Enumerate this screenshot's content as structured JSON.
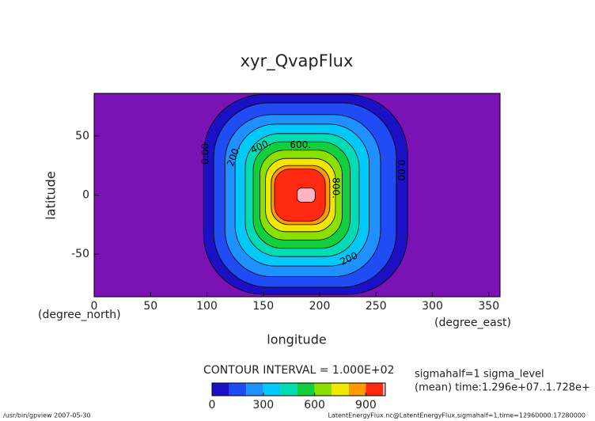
{
  "chart_data": {
    "type": "contour",
    "title": "xyr_QvapFlux",
    "x_label": "longitude",
    "y_label": "latitude",
    "x_unit": "(degree_east)",
    "y_unit": "(degree_north)",
    "xlim": [
      0,
      360
    ],
    "ylim": [
      -86,
      86
    ],
    "xticks": [
      0,
      50,
      100,
      150,
      200,
      250,
      300,
      350
    ],
    "yticks": [
      -50,
      0,
      50
    ],
    "background_color": "#7a12b4",
    "contours": [
      {
        "level": 0,
        "color": "#1c10c4",
        "lon": [
          97,
          278
        ],
        "lat": [
          -84,
          85
        ]
      },
      {
        "level": 100,
        "color": "#1f4cf5",
        "lon": [
          106,
          268
        ],
        "lat": [
          -78,
          78
        ]
      },
      {
        "level": 200,
        "color": "#1e90ff",
        "lon": [
          116,
          254
        ],
        "lat": [
          -69,
          68
        ]
      },
      {
        "level": 300,
        "color": "#00c8f8",
        "lon": [
          125,
          244
        ],
        "lat": [
          -60,
          60
        ]
      },
      {
        "level": 400,
        "color": "#00dcb4",
        "lon": [
          134,
          235
        ],
        "lat": [
          -52,
          52
        ]
      },
      {
        "level": 500,
        "color": "#10d040",
        "lon": [
          141,
          227
        ],
        "lat": [
          -45,
          45
        ]
      },
      {
        "level": 600,
        "color": "#8ce000",
        "lon": [
          147,
          220
        ],
        "lat": [
          -38,
          38
        ]
      },
      {
        "level": 700,
        "color": "#f0e800",
        "lon": [
          152,
          214
        ],
        "lat": [
          -31,
          31
        ]
      },
      {
        "level": 800,
        "color": "#ff9a00",
        "lon": [
          157,
          209
        ],
        "lat": [
          -25,
          25
        ]
      },
      {
        "level": 900,
        "color": "#ff2a10",
        "lon": [
          160,
          205
        ],
        "lat": [
          -22,
          22
        ]
      },
      {
        "level": 1000,
        "color": "#ffb4c0",
        "lon": [
          180,
          196
        ],
        "lat": [
          -6,
          6
        ]
      }
    ],
    "contour_labels": [
      {
        "text": "0.00",
        "lon": 99,
        "lat": 35,
        "rotate": -90
      },
      {
        "text": "200.",
        "lon": 124,
        "lat": 33,
        "rotate": -70
      },
      {
        "text": "400.",
        "lon": 148,
        "lat": 41,
        "rotate": -25
      },
      {
        "text": "600.",
        "lon": 183,
        "lat": 42,
        "rotate": 0
      },
      {
        "text": "800.",
        "lon": 214,
        "lat": 6,
        "rotate": 90
      },
      {
        "text": "200",
        "lon": 226,
        "lat": -54,
        "rotate": -25
      },
      {
        "text": "0.00",
        "lon": 272,
        "lat": 21,
        "rotate": 90
      }
    ],
    "contour_interval": "CONTOUR INTERVAL = 1.000E+02",
    "colorbar_ticks": [
      0,
      300,
      600,
      900
    ],
    "info": [
      "sigmahalf=1 sigma_level",
      "(mean) time:1.296e+07..1.728e+"
    ],
    "footer_left": "/usr/bin/gpview  2007-05-30",
    "footer_right": "LatentEnergyFlux.nc@LatentEnergyFlux,sigmahalf=1,time=12960000:17280000"
  }
}
